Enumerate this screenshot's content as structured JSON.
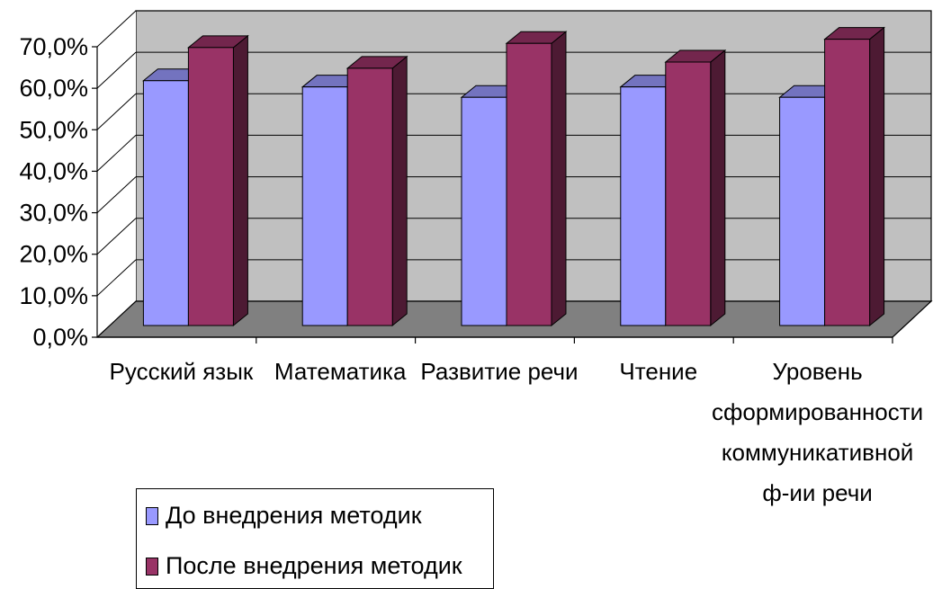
{
  "chart_data": {
    "type": "bar",
    "title": "",
    "xlabel": "",
    "ylabel": "",
    "ylim": [
      0,
      70
    ],
    "y_tick_values": [
      0,
      10,
      20,
      30,
      40,
      50,
      60,
      70
    ],
    "y_tick_labels": [
      "0,0%",
      "10,0%",
      "20,0%",
      "30,0%",
      "40,0%",
      "50,0%",
      "60,0%",
      "70,0%"
    ],
    "categories": [
      [
        "Русский язык"
      ],
      [
        "Математика"
      ],
      [
        "Развитие речи"
      ],
      [
        "Чтение"
      ],
      [
        "Уровень",
        "сформированности",
        "коммуникативной",
        "ф-ии речи"
      ]
    ],
    "series": [
      {
        "name": "До внедрения методик",
        "color": "#9999ff",
        "values": [
          59,
          57.5,
          55,
          57.5,
          55
        ]
      },
      {
        "name": "После внедрения методик",
        "color": "#993366",
        "values": [
          67,
          62,
          68,
          63.5,
          69
        ]
      }
    ],
    "grid": true,
    "legend_position": "bottom-left",
    "colors": {
      "wall": "#c0c0c0",
      "floor": "#808080",
      "gridline": "#000000"
    }
  }
}
